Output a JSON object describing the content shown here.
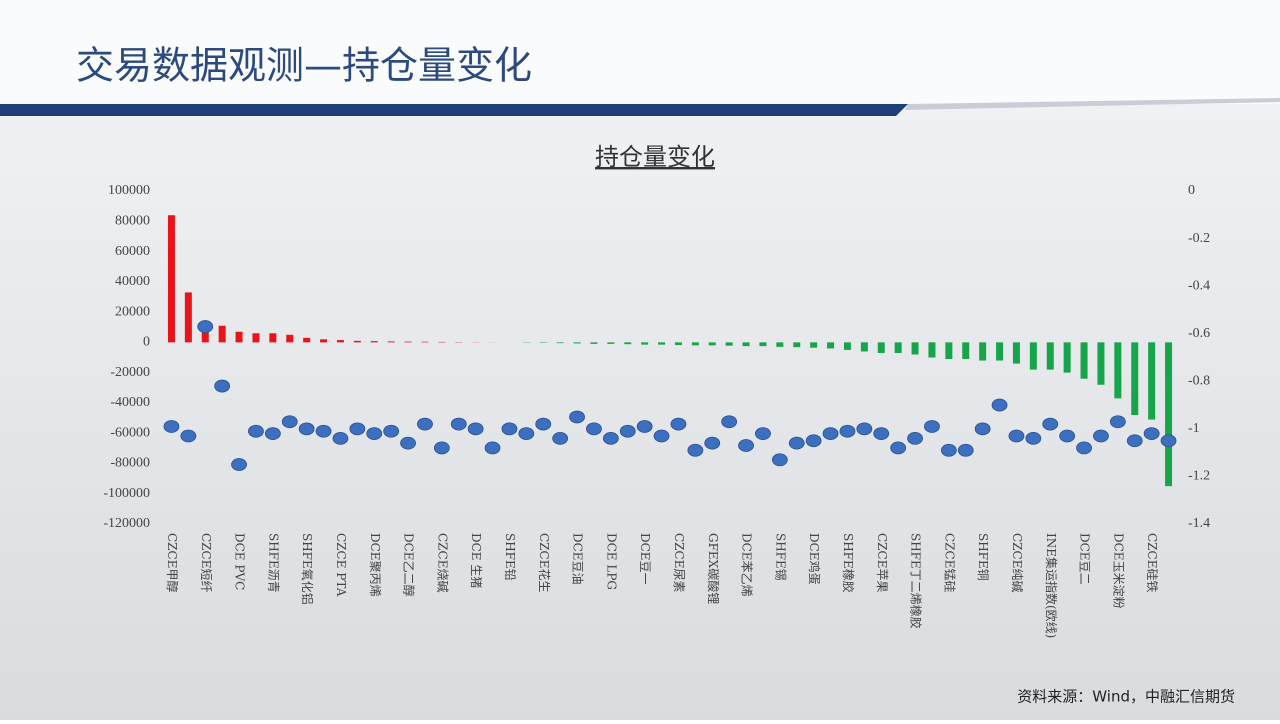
{
  "header": {
    "title": "交易数据观测—持仓量变化"
  },
  "chart_data": {
    "type": "bar",
    "title": "持仓量变化",
    "categories": [
      "CZCE甲醇",
      null,
      "CZCE短纤",
      null,
      "DCE PVC",
      null,
      "SHFE沥青",
      null,
      "SHFE氧化铝",
      null,
      "CZCE PTA",
      null,
      "DCE聚丙烯",
      null,
      "DCE乙二醇",
      null,
      "CZCE烧碱",
      null,
      "DCE 生猪",
      null,
      "SHFE铅",
      null,
      "CZCE花生",
      null,
      "DCE豆油",
      null,
      "DCE LPG",
      null,
      "DCE豆一",
      null,
      "CZCE尿素",
      null,
      "GFEX碳酸锂",
      null,
      "DCE苯乙烯",
      null,
      "SHFE锡",
      null,
      "DCE鸡蛋",
      null,
      "SHFE橡胶",
      null,
      "CZCE苹果",
      null,
      "SHFE丁二烯橡胶",
      null,
      "CZCE锰硅",
      null,
      "SHFE铜",
      null,
      "CZCE纯碱",
      null,
      "INE集运指数(欧线)",
      null,
      "DCE豆二",
      null,
      "DCE玉米淀粉",
      null,
      "CZCE硅铁",
      null
    ],
    "series": [
      {
        "positive_color": "#e8141a",
        "negative_color": "#16a54a",
        "values": [
          84000,
          33000,
          12000,
          11000,
          7000,
          6000,
          6000,
          5000,
          3000,
          2000,
          1500,
          1000,
          800,
          600,
          500,
          400,
          300,
          200,
          100,
          50,
          0,
          -200,
          -300,
          -500,
          -700,
          -1000,
          -1000,
          -1200,
          -1500,
          -1500,
          -1800,
          -2000,
          -2000,
          -2200,
          -2500,
          -2500,
          -3000,
          -3200,
          -3500,
          -4000,
          -5000,
          -6000,
          -7000,
          -7000,
          -8000,
          -10000,
          -11000,
          -11000,
          -12000,
          -12000,
          -14000,
          -18000,
          -18000,
          -20000,
          -24000,
          -28000,
          -37000,
          -48000,
          -51000,
          -95000
        ]
      },
      {
        "type": "scatter",
        "axis": "y2",
        "color": "#3d6fc0",
        "values": [
          -0.99,
          -1.03,
          -0.57,
          -0.82,
          -1.15,
          -1.01,
          -1.02,
          -0.97,
          -1.0,
          -1.01,
          -1.04,
          -1.0,
          -1.02,
          -1.01,
          -1.06,
          -0.98,
          -1.08,
          -0.98,
          -1.0,
          -1.08,
          -1.0,
          -1.02,
          -0.98,
          -1.04,
          -0.95,
          -1.0,
          -1.04,
          -1.01,
          -0.99,
          -1.03,
          -0.98,
          -1.09,
          -1.06,
          -0.97,
          -1.07,
          -1.02,
          -1.13,
          -1.06,
          -1.05,
          -1.02,
          -1.01,
          -1.0,
          -1.02,
          -1.08,
          -1.04,
          -0.99,
          -1.09,
          -1.09,
          -1.0,
          -0.9,
          -1.03,
          -1.04,
          -0.98,
          -1.03,
          -1.08,
          -1.03,
          -0.97,
          -1.05,
          -1.02,
          -1.05
        ]
      }
    ],
    "ylim": [
      -120000,
      100000
    ],
    "yticks": [
      100000,
      80000,
      60000,
      40000,
      20000,
      0,
      -20000,
      -40000,
      -60000,
      -80000,
      -100000,
      -120000
    ],
    "y2lim": [
      -1.4,
      0
    ],
    "y2ticks": [
      0,
      -0.2,
      -0.4,
      -0.6,
      -0.8,
      -1,
      -1.2,
      -1.4
    ]
  },
  "footer": {
    "source": "资料来源：Wind，中融汇信期货"
  }
}
